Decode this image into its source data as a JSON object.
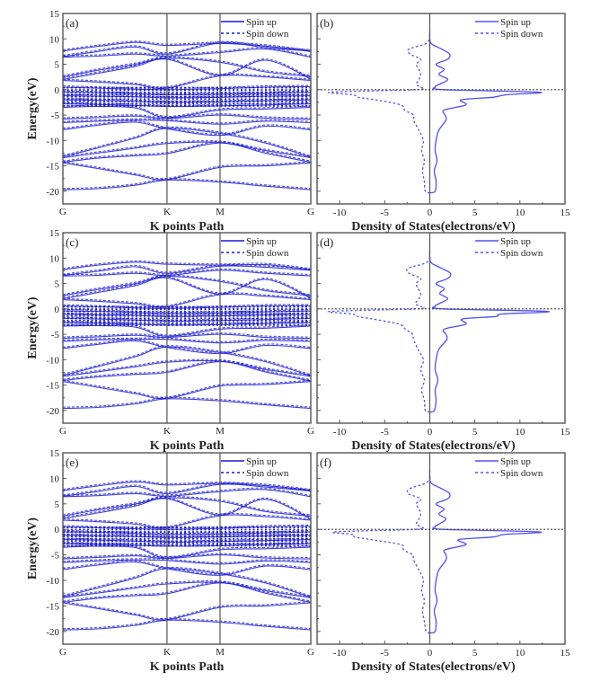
{
  "figure": {
    "colors": {
      "band": "#1a1ad6",
      "dos": "#5050f0",
      "axis": "#555555",
      "fermi": "#444444"
    }
  },
  "chart_data": [
    {
      "type": "line",
      "panel": "(a)",
      "kind": "band_structure",
      "xlabel": "K points Path",
      "ylabel": "Energy(eV)",
      "ylim": [
        -22.5,
        15
      ],
      "yticks": [
        15,
        10,
        5,
        0,
        -5,
        -10,
        -15,
        -20
      ],
      "kpoints": [
        {
          "label": "G",
          "pos": 0
        },
        {
          "label": "K",
          "pos": 0.42
        },
        {
          "label": "M",
          "pos": 0.634
        },
        {
          "label": "G",
          "pos": 1
        }
      ],
      "legend": [
        "Spin up",
        "Spin down"
      ],
      "bands": [
        [
          7.6,
          8.5,
          9.3,
          8.7,
          9.1,
          8.6,
          7.5
        ],
        [
          6.5,
          7.5,
          8.4,
          7.0,
          9.2,
          8.3,
          7.6
        ],
        [
          6.4,
          6.6,
          7.0,
          6.6,
          7.3,
          8.0,
          6.4
        ],
        [
          2.5,
          3.8,
          5.0,
          6.2,
          5.4,
          3.5,
          2.6
        ],
        [
          2.0,
          3.2,
          4.6,
          6.0,
          2.8,
          5.8,
          2.1
        ],
        [
          1.8,
          1.5,
          1.0,
          0.3,
          2.7,
          2.5,
          1.8
        ],
        [
          0.5,
          0.3,
          0.1,
          0.0,
          0.2,
          0.5,
          0.6
        ],
        [
          -0.5,
          -0.6,
          -0.8,
          -1.0,
          -0.9,
          -0.7,
          -0.5
        ],
        [
          -1.2,
          -1.3,
          -1.4,
          -1.6,
          -1.5,
          -1.3,
          -1.2
        ],
        [
          -2.0,
          -2.1,
          -2.3,
          -2.5,
          -2.4,
          -2.2,
          -2.0
        ],
        [
          -2.8,
          -2.9,
          -3.1,
          -3.3,
          -3.2,
          -3.0,
          -2.8
        ],
        [
          -3.5,
          -3.3,
          -3.6,
          -5.5,
          -4.0,
          -3.8,
          -3.5
        ],
        [
          -5.8,
          -5.5,
          -5.2,
          -5.7,
          -5.0,
          -5.6,
          -5.8
        ],
        [
          -6.5,
          -6.2,
          -6.0,
          -6.1,
          -6.8,
          -6.2,
          -6.5
        ],
        [
          -7.9,
          -7.0,
          -6.4,
          -7.7,
          -9.0,
          -7.2,
          -7.9
        ],
        [
          -13.2,
          -11.5,
          -9.5,
          -7.6,
          -8.6,
          -10.5,
          -13.3
        ],
        [
          -13.4,
          -12.5,
          -11.5,
          -10.6,
          -10.4,
          -12.0,
          -13.4
        ],
        [
          -14.3,
          -13.5,
          -13.0,
          -12.6,
          -10.5,
          -12.5,
          -14.3
        ],
        [
          -14.4,
          -15.5,
          -16.8,
          -17.7,
          -15.3,
          -15.0,
          -14.4
        ],
        [
          -19.7,
          -19.5,
          -18.8,
          -17.8,
          -18.2,
          -19.0,
          -19.7
        ]
      ]
    },
    {
      "type": "line",
      "panel": "(b)",
      "kind": "dos",
      "xlabel": "Density of States(electrons/eV)",
      "xlim": [
        -12.5,
        15
      ],
      "xticks": [
        -10,
        -5,
        0,
        5,
        10,
        15
      ],
      "ylim": [
        -22.5,
        15
      ],
      "legend": [
        "Spin up",
        "Spin down"
      ],
      "energy": [
        -20,
        -18,
        -16,
        -14,
        -12,
        -10,
        -8,
        -6,
        -5,
        -4,
        -3,
        -2,
        -1.5,
        -1,
        -0.5,
        0,
        0.5,
        1,
        2,
        3,
        4,
        5,
        6,
        7,
        8,
        9,
        10
      ],
      "spin_up": [
        0.6,
        0.7,
        0.5,
        0.8,
        0.6,
        0.7,
        1.0,
        1.8,
        1.7,
        1.6,
        4.0,
        3.5,
        7.0,
        8.5,
        12.2,
        1.5,
        0.6,
        1.0,
        2.0,
        1.0,
        1.6,
        0.7,
        2.0,
        2.2,
        1.3,
        0.2,
        0.0
      ],
      "spin_down": [
        -0.5,
        -0.6,
        -0.8,
        -0.6,
        -0.9,
        -0.7,
        -1.2,
        -1.8,
        -1.8,
        -2.8,
        -3.2,
        -6.0,
        -8.0,
        -8.5,
        -11.0,
        -1.5,
        -1.0,
        -1.5,
        -1.2,
        -1.0,
        -1.2,
        -1.5,
        -1.0,
        -2.2,
        -2.3,
        -0.5,
        0.0
      ]
    },
    {
      "type": "line",
      "panel": "(c)",
      "kind": "band_structure",
      "xlabel": "K points Path",
      "ylabel": "Energy(eV)",
      "ylim": [
        -22.5,
        15
      ],
      "yticks": [
        15,
        10,
        5,
        0,
        -5,
        -10,
        -15,
        -20
      ],
      "kpoints": [
        {
          "label": "G",
          "pos": 0
        },
        {
          "label": "K",
          "pos": 0.42
        },
        {
          "label": "M",
          "pos": 0.634
        },
        {
          "label": "G",
          "pos": 1
        }
      ],
      "legend": [
        "Spin up",
        "Spin down"
      ],
      "bands": [
        [
          7.7,
          8.6,
          9.2,
          8.8,
          8.6,
          8.7,
          7.7
        ],
        [
          6.6,
          7.4,
          8.3,
          7.0,
          8.4,
          8.2,
          7.6
        ],
        [
          6.5,
          6.6,
          7.0,
          6.6,
          7.6,
          7.0,
          6.5
        ],
        [
          2.6,
          3.8,
          5.0,
          6.4,
          5.4,
          3.6,
          2.6
        ],
        [
          2.0,
          3.2,
          4.6,
          6.1,
          2.9,
          5.8,
          2.1
        ],
        [
          1.8,
          1.5,
          1.0,
          0.4,
          2.8,
          2.5,
          1.8
        ],
        [
          0.6,
          0.4,
          0.2,
          0.1,
          0.3,
          0.6,
          0.6
        ],
        [
          -0.4,
          -0.5,
          -0.7,
          -0.9,
          -0.8,
          -0.6,
          -0.4
        ],
        [
          -1.1,
          -1.2,
          -1.3,
          -1.5,
          -1.4,
          -1.2,
          -1.1
        ],
        [
          -1.9,
          -2.0,
          -2.2,
          -2.4,
          -2.3,
          -2.1,
          -1.9
        ],
        [
          -2.7,
          -2.8,
          -3.0,
          -3.2,
          -3.1,
          -2.9,
          -2.7
        ],
        [
          -3.4,
          -3.3,
          -3.6,
          -5.4,
          -4.0,
          -3.8,
          -3.4
        ],
        [
          -5.8,
          -5.5,
          -5.2,
          -5.6,
          -5.0,
          -5.6,
          -5.8
        ],
        [
          -6.4,
          -6.1,
          -6.0,
          -6.0,
          -6.7,
          -6.2,
          -6.4
        ],
        [
          -7.8,
          -7.0,
          -6.3,
          -7.6,
          -8.8,
          -7.2,
          -7.8
        ],
        [
          -13.1,
          -11.4,
          -9.4,
          -7.5,
          -8.6,
          -10.4,
          -13.2
        ],
        [
          -13.3,
          -12.4,
          -11.4,
          -10.5,
          -10.3,
          -11.9,
          -13.3
        ],
        [
          -14.1,
          -13.4,
          -12.9,
          -12.5,
          -10.4,
          -12.4,
          -14.2
        ],
        [
          -14.3,
          -15.4,
          -16.7,
          -17.6,
          -15.2,
          -14.9,
          -14.3
        ],
        [
          -19.6,
          -19.4,
          -18.7,
          -17.7,
          -18.1,
          -18.9,
          -19.6
        ]
      ]
    },
    {
      "type": "line",
      "panel": "(d)",
      "kind": "dos",
      "xlabel": "Density of States(electrons/eV)",
      "xlim": [
        -12.5,
        15
      ],
      "xticks": [
        -10,
        -5,
        0,
        5,
        10,
        15
      ],
      "ylim": [
        -22.5,
        15
      ],
      "legend": [
        "Spin up",
        "Spin down"
      ],
      "energy": [
        -20,
        -18,
        -16,
        -14,
        -12,
        -10,
        -8,
        -6,
        -5,
        -4,
        -3,
        -2,
        -1.5,
        -1,
        -0.5,
        0,
        0.5,
        1,
        2,
        3,
        4,
        5,
        6,
        7,
        8,
        9,
        10
      ],
      "spin_up": [
        0.5,
        0.7,
        0.6,
        0.9,
        0.6,
        0.7,
        1.0,
        1.9,
        1.8,
        1.6,
        4.0,
        3.6,
        7.3,
        8.0,
        13.1,
        1.5,
        0.6,
        1.0,
        2.0,
        1.1,
        1.6,
        0.7,
        2.0,
        2.3,
        1.3,
        0.2,
        0.0
      ],
      "spin_down": [
        -0.5,
        -0.6,
        -0.9,
        -0.6,
        -1.0,
        -0.7,
        -1.3,
        -1.8,
        -1.9,
        -2.7,
        -3.4,
        -6.3,
        -8.0,
        -8.6,
        -11.0,
        -1.5,
        -1.0,
        -1.6,
        -1.2,
        -1.0,
        -1.3,
        -1.5,
        -1.0,
        -2.3,
        -2.4,
        -0.5,
        0.0
      ]
    },
    {
      "type": "line",
      "panel": "(e)",
      "kind": "band_structure",
      "xlabel": "K points Path",
      "ylabel": "Energy(eV)",
      "ylim": [
        -22.5,
        15
      ],
      "yticks": [
        15,
        10,
        5,
        0,
        -5,
        -10,
        -15,
        -20
      ],
      "kpoints": [
        {
          "label": "G",
          "pos": 0
        },
        {
          "label": "K",
          "pos": 0.42
        },
        {
          "label": "M",
          "pos": 0.634
        },
        {
          "label": "G",
          "pos": 1
        }
      ],
      "legend": [
        "Spin up",
        "Spin down"
      ],
      "bands": [
        [
          7.6,
          8.5,
          9.3,
          8.7,
          9.0,
          8.6,
          7.6
        ],
        [
          6.5,
          7.4,
          8.4,
          7.0,
          8.8,
          8.3,
          7.5
        ],
        [
          6.4,
          6.6,
          7.0,
          6.5,
          7.4,
          7.8,
          6.4
        ],
        [
          2.6,
          3.8,
          5.0,
          6.2,
          5.5,
          3.5,
          2.6
        ],
        [
          2.1,
          3.2,
          4.6,
          6.0,
          2.8,
          5.9,
          2.0
        ],
        [
          1.8,
          1.5,
          1.0,
          0.3,
          2.7,
          2.5,
          1.8
        ],
        [
          0.5,
          0.3,
          0.1,
          0.0,
          0.2,
          0.5,
          0.6
        ],
        [
          -0.5,
          -0.6,
          -0.8,
          -1.0,
          -0.9,
          -0.7,
          -0.5
        ],
        [
          -1.2,
          -1.3,
          -1.4,
          -1.6,
          -1.5,
          -1.3,
          -1.2
        ],
        [
          -2.0,
          -2.1,
          -2.3,
          -2.5,
          -2.4,
          -2.2,
          -2.0
        ],
        [
          -2.8,
          -2.9,
          -3.1,
          -3.3,
          -3.2,
          -3.0,
          -2.8
        ],
        [
          -3.5,
          -3.3,
          -3.6,
          -5.6,
          -4.0,
          -3.8,
          -3.5
        ],
        [
          -5.8,
          -5.5,
          -5.2,
          -5.7,
          -5.0,
          -5.6,
          -5.8
        ],
        [
          -6.5,
          -6.2,
          -6.0,
          -6.1,
          -6.8,
          -6.2,
          -6.5
        ],
        [
          -7.9,
          -7.0,
          -6.4,
          -7.7,
          -9.0,
          -7.2,
          -7.9
        ],
        [
          -13.2,
          -11.5,
          -9.5,
          -7.7,
          -8.7,
          -10.5,
          -13.3
        ],
        [
          -13.4,
          -12.5,
          -11.5,
          -10.7,
          -10.4,
          -12.0,
          -13.4
        ],
        [
          -14.3,
          -13.5,
          -13.0,
          -12.6,
          -10.5,
          -12.5,
          -14.3
        ],
        [
          -14.4,
          -15.5,
          -16.8,
          -17.7,
          -15.3,
          -15.0,
          -14.4
        ],
        [
          -19.7,
          -19.5,
          -18.8,
          -17.8,
          -18.2,
          -19.0,
          -19.7
        ]
      ]
    },
    {
      "type": "line",
      "panel": "(f)",
      "kind": "dos",
      "xlabel": "Density of States(electrons/eV)",
      "xlim": [
        -12.5,
        15
      ],
      "xticks": [
        -10,
        -5,
        0,
        5,
        10,
        15
      ],
      "ylim": [
        -22.5,
        15
      ],
      "legend": [
        "Spin up",
        "Spin down"
      ],
      "energy": [
        -20,
        -18,
        -16,
        -14,
        -12,
        -10,
        -8,
        -6,
        -5,
        -4,
        -3,
        -2,
        -1.5,
        -1,
        -0.5,
        0,
        0.5,
        1,
        2,
        3,
        4,
        5,
        6,
        7,
        8,
        9,
        10
      ],
      "spin_up": [
        0.6,
        0.7,
        0.5,
        0.8,
        0.6,
        0.7,
        1.0,
        1.8,
        1.8,
        1.7,
        4.0,
        3.2,
        7.0,
        8.3,
        12.2,
        1.5,
        0.6,
        1.0,
        1.8,
        1.0,
        1.6,
        0.7,
        2.0,
        2.2,
        1.3,
        0.2,
        0.0
      ],
      "spin_down": [
        -0.4,
        -0.6,
        -0.8,
        -0.6,
        -0.9,
        -0.7,
        -1.2,
        -1.8,
        -1.9,
        -2.9,
        -3.2,
        -6.5,
        -8.3,
        -8.5,
        -10.5,
        -1.5,
        -1.0,
        -1.5,
        -1.2,
        -1.0,
        -1.2,
        -1.5,
        -1.0,
        -2.4,
        -2.2,
        -0.5,
        0.0
      ]
    }
  ]
}
